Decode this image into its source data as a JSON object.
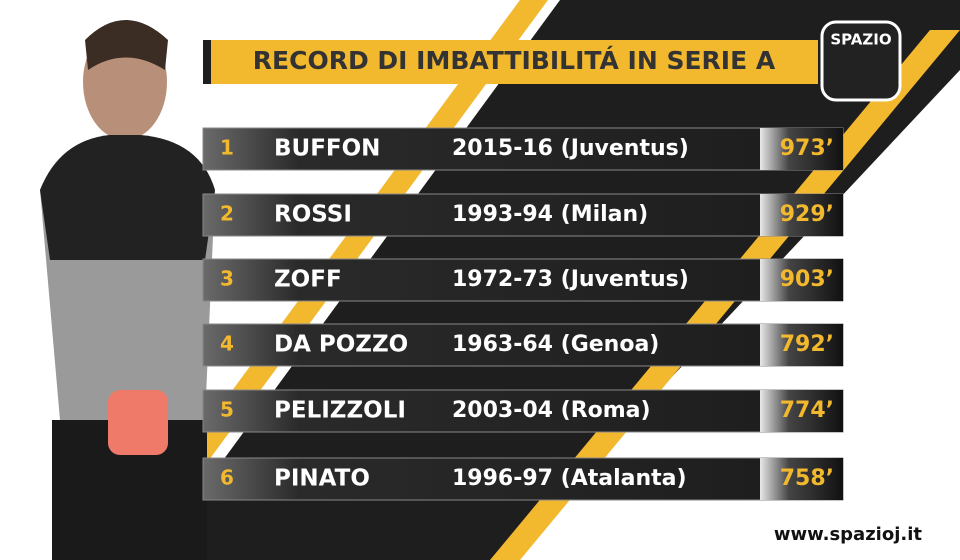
{
  "header": {
    "title": "RECORD DI IMBATTIBILITÁ IN SERIE A",
    "logo": "SPAZIO"
  },
  "table": {
    "rows": [
      {
        "rank": "1",
        "name": "BUFFON",
        "season": "2015-16 (Juventus)",
        "minutes": "973’"
      },
      {
        "rank": "2",
        "name": "ROSSI",
        "season": "1993-94 (Milan)",
        "minutes": "929’"
      },
      {
        "rank": "3",
        "name": "ZOFF",
        "season": "1972-73 (Juventus)",
        "minutes": "903’"
      },
      {
        "rank": "4",
        "name": "DA POZZO",
        "season": "1963-64 (Genoa)",
        "minutes": "792’"
      },
      {
        "rank": "5",
        "name": "PELIZZOLI",
        "season": "2003-04 (Roma)",
        "minutes": "774’"
      },
      {
        "rank": "6",
        "name": "PINATO",
        "season": "1996-97 (Atalanta)",
        "minutes": "758’"
      }
    ]
  },
  "footer": {
    "url": "www.spazioj.it"
  }
}
